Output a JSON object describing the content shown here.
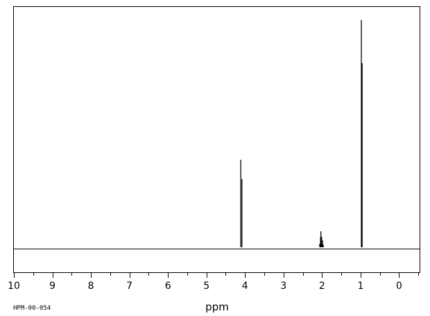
{
  "chart_data": {
    "type": "line",
    "title": "",
    "xlabel": "ppm",
    "ylabel": "",
    "xlim": [
      10,
      -0.55
    ],
    "x_reversed": true,
    "major_ticks": [
      10,
      9,
      8,
      7,
      6,
      5,
      4,
      3,
      2,
      1,
      0
    ],
    "tick_labels": [
      "10",
      "9",
      "8",
      "7",
      "6",
      "5",
      "4",
      "3",
      "2",
      "1",
      "0"
    ],
    "minor_tick_step": 0.5,
    "baseline_intensity": 0,
    "ylim": [
      -0.11,
      1.06
    ],
    "grid": false,
    "spectrum_id": "HPM-00-054",
    "peaks": [
      {
        "ppm": 4.11,
        "intensity": 0.385
      },
      {
        "ppm": 4.08,
        "intensity": 0.3
      },
      {
        "ppm": 2.06,
        "intensity": 0.015
      },
      {
        "ppm": 2.04,
        "intensity": 0.045
      },
      {
        "ppm": 2.03,
        "intensity": 0.07
      },
      {
        "ppm": 2.01,
        "intensity": 0.045
      },
      {
        "ppm": 1.99,
        "intensity": 0.03
      },
      {
        "ppm": 1.97,
        "intensity": 0.012
      },
      {
        "ppm": 0.98,
        "intensity": 1.0
      },
      {
        "ppm": 0.96,
        "intensity": 0.81
      }
    ]
  }
}
